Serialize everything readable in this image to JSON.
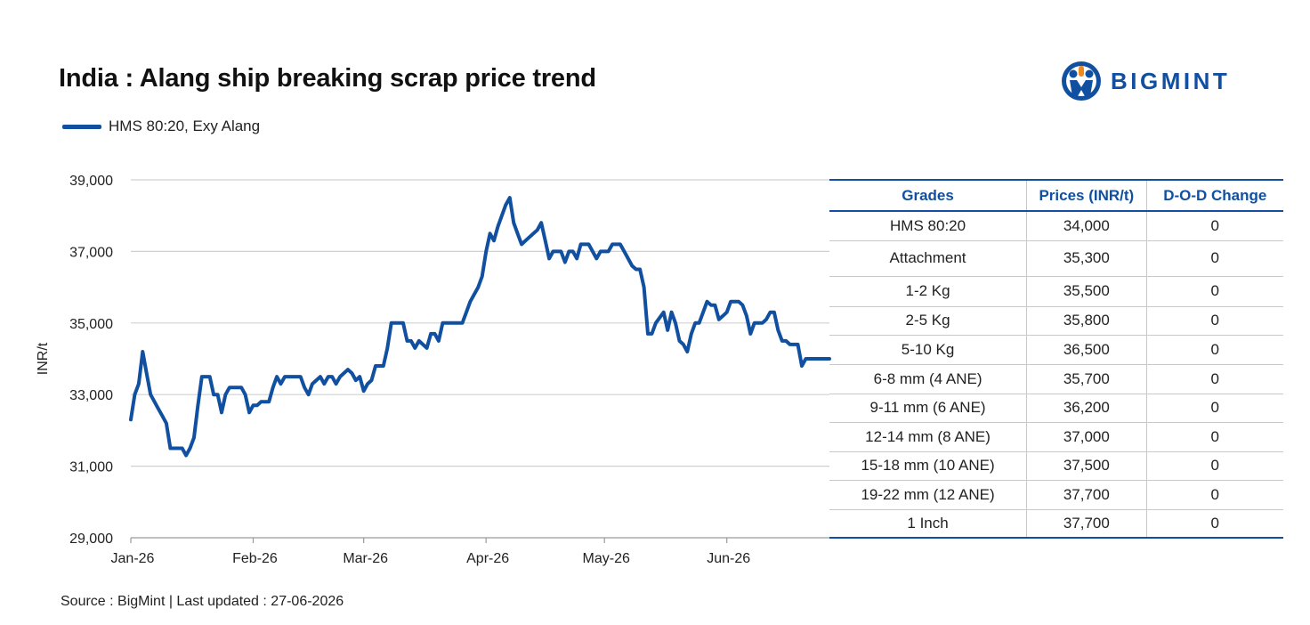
{
  "title": "India : Alang ship breaking scrap price trend",
  "logo": {
    "text": "BIGMINT"
  },
  "legend": {
    "label": "HMS 80:20, Exy Alang"
  },
  "source": "Source : BigMint | Last updated : 27-06-2026",
  "colors": {
    "series": "#1150a0",
    "grid": "#d0d0d0",
    "table_header": "#1150a0"
  },
  "table": {
    "headers": [
      "Grades",
      "Prices (INR/t)",
      "D-O-D Change"
    ],
    "rows": [
      [
        "HMS 80:20",
        "34,000",
        "0"
      ],
      [
        "Attachment",
        "35,300",
        "0"
      ],
      [
        "1-2 Kg",
        "35,500",
        "0"
      ],
      [
        "2-5 Kg",
        "35,800",
        "0"
      ],
      [
        "5-10 Kg",
        "36,500",
        "0"
      ],
      [
        "6-8 mm (4 ANE)",
        "35,700",
        "0"
      ],
      [
        "9-11 mm (6 ANE)",
        "36,200",
        "0"
      ],
      [
        "12-14 mm (8 ANE)",
        "37,000",
        "0"
      ],
      [
        "15-18 mm (10 ANE)",
        "37,500",
        "0"
      ],
      [
        "19-22 mm (12 ANE)",
        "37,700",
        "0"
      ],
      [
        "1 Inch",
        "37,700",
        "0"
      ]
    ]
  },
  "chart_data": {
    "type": "line",
    "title": "India : Alang ship breaking scrap price trend",
    "xlabel": "",
    "ylabel": "INR/t",
    "ylim": [
      29000,
      39000
    ],
    "y_ticks": [
      29000,
      31000,
      33000,
      35000,
      37000,
      39000
    ],
    "y_tick_labels": [
      "29,000",
      "31,000",
      "33,000",
      "35,000",
      "37,000",
      "39,000"
    ],
    "xlim": [
      "2026-01-01",
      "2026-06-27"
    ],
    "x_ticks": [
      "2026-01-01",
      "2026-02-01",
      "2026-03-01",
      "2026-04-01",
      "2026-05-01",
      "2026-06-01"
    ],
    "x_tick_labels": [
      "Jan-26",
      "Feb-26",
      "Mar-26",
      "Apr-26",
      "May-26",
      "Jun-26"
    ],
    "grid": "horizontal",
    "legend_position": "top-left",
    "series": [
      {
        "name": "HMS 80:20, Exy Alang",
        "points": [
          [
            "2026-01-01",
            32300
          ],
          [
            "2026-01-02",
            33000
          ],
          [
            "2026-01-03",
            33300
          ],
          [
            "2026-01-04",
            34200
          ],
          [
            "2026-01-05",
            33600
          ],
          [
            "2026-01-06",
            33000
          ],
          [
            "2026-01-08",
            32600
          ],
          [
            "2026-01-09",
            32400
          ],
          [
            "2026-01-10",
            32200
          ],
          [
            "2026-01-11",
            31500
          ],
          [
            "2026-01-13",
            31500
          ],
          [
            "2026-01-14",
            31500
          ],
          [
            "2026-01-15",
            31300
          ],
          [
            "2026-01-16",
            31500
          ],
          [
            "2026-01-17",
            31800
          ],
          [
            "2026-01-18",
            32700
          ],
          [
            "2026-01-19",
            33500
          ],
          [
            "2026-01-21",
            33500
          ],
          [
            "2026-01-22",
            33000
          ],
          [
            "2026-01-23",
            33000
          ],
          [
            "2026-01-24",
            32500
          ],
          [
            "2026-01-25",
            33000
          ],
          [
            "2026-01-26",
            33200
          ],
          [
            "2026-01-28",
            33200
          ],
          [
            "2026-01-29",
            33200
          ],
          [
            "2026-01-30",
            33000
          ],
          [
            "2026-01-31",
            32500
          ],
          [
            "2026-02-01",
            32700
          ],
          [
            "2026-02-02",
            32700
          ],
          [
            "2026-02-03",
            32800
          ],
          [
            "2026-02-04",
            32800
          ],
          [
            "2026-02-05",
            32800
          ],
          [
            "2026-02-06",
            33200
          ],
          [
            "2026-02-07",
            33500
          ],
          [
            "2026-02-08",
            33300
          ],
          [
            "2026-02-09",
            33500
          ],
          [
            "2026-02-11",
            33500
          ],
          [
            "2026-02-12",
            33500
          ],
          [
            "2026-02-13",
            33500
          ],
          [
            "2026-02-14",
            33200
          ],
          [
            "2026-02-15",
            33000
          ],
          [
            "2026-02-16",
            33300
          ],
          [
            "2026-02-18",
            33500
          ],
          [
            "2026-02-19",
            33300
          ],
          [
            "2026-02-20",
            33500
          ],
          [
            "2026-02-21",
            33500
          ],
          [
            "2026-02-22",
            33300
          ],
          [
            "2026-02-23",
            33500
          ],
          [
            "2026-02-25",
            33700
          ],
          [
            "2026-02-26",
            33600
          ],
          [
            "2026-02-27",
            33400
          ],
          [
            "2026-02-28",
            33500
          ],
          [
            "2026-03-01",
            33100
          ],
          [
            "2026-03-02",
            33300
          ],
          [
            "2026-03-03",
            33400
          ],
          [
            "2026-03-04",
            33800
          ],
          [
            "2026-03-05",
            33800
          ],
          [
            "2026-03-06",
            33800
          ],
          [
            "2026-03-07",
            34300
          ],
          [
            "2026-03-08",
            35000
          ],
          [
            "2026-03-09",
            35000
          ],
          [
            "2026-03-11",
            35000
          ],
          [
            "2026-03-12",
            34500
          ],
          [
            "2026-03-13",
            34500
          ],
          [
            "2026-03-14",
            34300
          ],
          [
            "2026-03-15",
            34500
          ],
          [
            "2026-03-16",
            34400
          ],
          [
            "2026-03-17",
            34300
          ],
          [
            "2026-03-18",
            34700
          ],
          [
            "2026-03-19",
            34700
          ],
          [
            "2026-03-20",
            34500
          ],
          [
            "2026-03-21",
            35000
          ],
          [
            "2026-03-22",
            35000
          ],
          [
            "2026-03-23",
            35000
          ],
          [
            "2026-03-25",
            35000
          ],
          [
            "2026-03-26",
            35000
          ],
          [
            "2026-03-27",
            35300
          ],
          [
            "2026-03-28",
            35600
          ],
          [
            "2026-03-30",
            36000
          ],
          [
            "2026-03-31",
            36300
          ],
          [
            "2026-04-01",
            37000
          ],
          [
            "2026-04-02",
            37500
          ],
          [
            "2026-04-03",
            37300
          ],
          [
            "2026-04-04",
            37700
          ],
          [
            "2026-04-05",
            38000
          ],
          [
            "2026-04-06",
            38300
          ],
          [
            "2026-04-07",
            38500
          ],
          [
            "2026-04-08",
            37800
          ],
          [
            "2026-04-09",
            37500
          ],
          [
            "2026-04-10",
            37200
          ],
          [
            "2026-04-11",
            37300
          ],
          [
            "2026-04-12",
            37400
          ],
          [
            "2026-04-13",
            37500
          ],
          [
            "2026-04-14",
            37600
          ],
          [
            "2026-04-15",
            37800
          ],
          [
            "2026-04-16",
            37300
          ],
          [
            "2026-04-17",
            36800
          ],
          [
            "2026-04-18",
            37000
          ],
          [
            "2026-04-20",
            37000
          ],
          [
            "2026-04-21",
            36700
          ],
          [
            "2026-04-22",
            37000
          ],
          [
            "2026-04-23",
            37000
          ],
          [
            "2026-04-24",
            36800
          ],
          [
            "2026-04-25",
            37200
          ],
          [
            "2026-04-27",
            37200
          ],
          [
            "2026-04-28",
            37000
          ],
          [
            "2026-04-29",
            36800
          ],
          [
            "2026-04-30",
            37000
          ],
          [
            "2026-05-01",
            37000
          ],
          [
            "2026-05-02",
            37000
          ],
          [
            "2026-05-03",
            37200
          ],
          [
            "2026-05-05",
            37200
          ],
          [
            "2026-05-06",
            37000
          ],
          [
            "2026-05-07",
            36800
          ],
          [
            "2026-05-08",
            36600
          ],
          [
            "2026-05-09",
            36500
          ],
          [
            "2026-05-10",
            36500
          ],
          [
            "2026-05-11",
            36000
          ],
          [
            "2026-05-12",
            34700
          ],
          [
            "2026-05-13",
            34700
          ],
          [
            "2026-05-14",
            35000
          ],
          [
            "2026-05-16",
            35300
          ],
          [
            "2026-05-17",
            34800
          ],
          [
            "2026-05-18",
            35300
          ],
          [
            "2026-05-19",
            35000
          ],
          [
            "2026-05-20",
            34500
          ],
          [
            "2026-05-21",
            34400
          ],
          [
            "2026-05-22",
            34200
          ],
          [
            "2026-05-23",
            34700
          ],
          [
            "2026-05-24",
            35000
          ],
          [
            "2026-05-25",
            35000
          ],
          [
            "2026-05-26",
            35300
          ],
          [
            "2026-05-27",
            35600
          ],
          [
            "2026-05-28",
            35500
          ],
          [
            "2026-05-29",
            35500
          ],
          [
            "2026-05-30",
            35100
          ],
          [
            "2026-05-31",
            35200
          ],
          [
            "2026-06-01",
            35300
          ],
          [
            "2026-06-02",
            35600
          ],
          [
            "2026-06-04",
            35600
          ],
          [
            "2026-06-05",
            35500
          ],
          [
            "2026-06-06",
            35200
          ],
          [
            "2026-06-07",
            34700
          ],
          [
            "2026-06-08",
            35000
          ],
          [
            "2026-06-09",
            35000
          ],
          [
            "2026-06-10",
            35000
          ],
          [
            "2026-06-11",
            35100
          ],
          [
            "2026-06-12",
            35300
          ],
          [
            "2026-06-13",
            35300
          ],
          [
            "2026-06-14",
            34800
          ],
          [
            "2026-06-15",
            34500
          ],
          [
            "2026-06-16",
            34500
          ],
          [
            "2026-06-17",
            34400
          ],
          [
            "2026-06-18",
            34400
          ],
          [
            "2026-06-19",
            34400
          ],
          [
            "2026-06-20",
            33800
          ],
          [
            "2026-06-21",
            34000
          ],
          [
            "2026-06-22",
            34000
          ],
          [
            "2026-06-23",
            34000
          ],
          [
            "2026-06-24",
            34000
          ],
          [
            "2026-06-25",
            34000
          ],
          [
            "2026-06-26",
            34000
          ],
          [
            "2026-06-27",
            34000
          ]
        ]
      }
    ]
  }
}
